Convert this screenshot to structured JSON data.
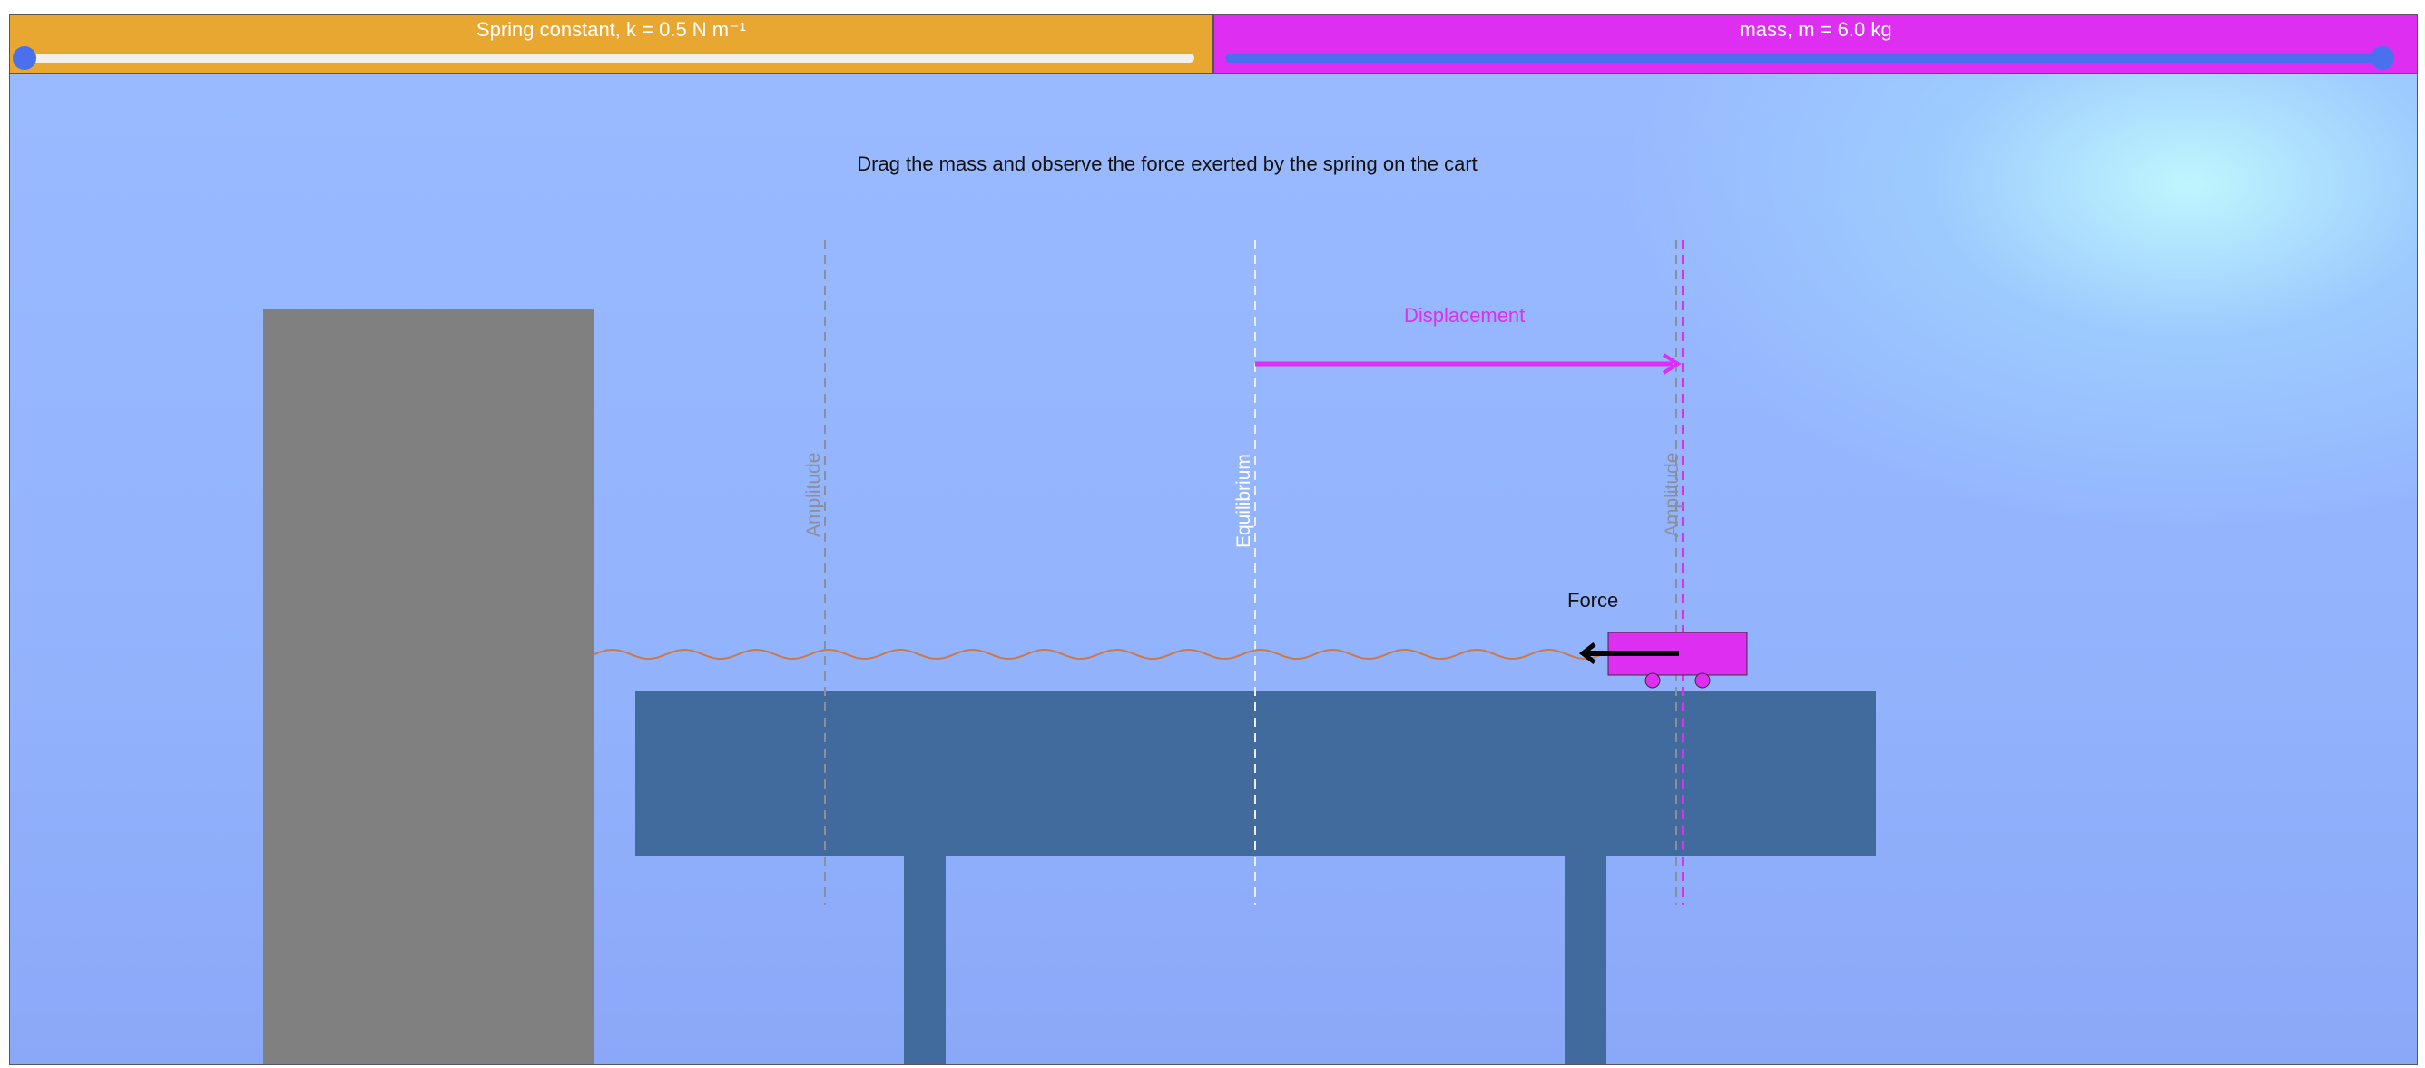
{
  "sliders": {
    "spring": {
      "label": "Spring constant, k = 0.5 N m⁻¹",
      "fraction": 0.0,
      "color": "#e8a730"
    },
    "mass": {
      "label": "mass, m = 6.0 kg",
      "fraction": 1.0,
      "color": "#dd2ef2"
    }
  },
  "scene": {
    "instruction": "Drag the mass and observe the force exerted by the spring on the cart",
    "labels": {
      "amplitude_left": "Amplitude",
      "equilibrium": "Equilibrium",
      "amplitude_right": "Amplitude",
      "displacement": "Displacement",
      "force": "Force"
    }
  },
  "colors": {
    "wall": "#808080",
    "table": "#416b9d",
    "cart": "#dd2ef2",
    "spring": "#c97a4a",
    "displacement_arrow": "#dd2ef2",
    "force_arrow": "#000000"
  }
}
